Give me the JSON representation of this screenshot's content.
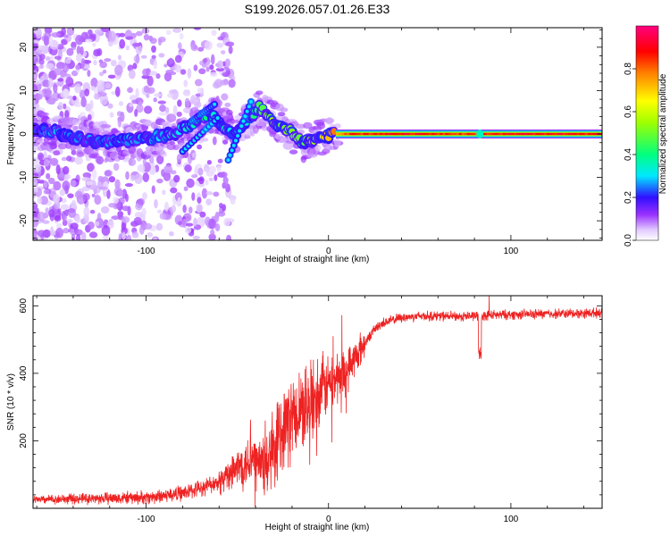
{
  "title": "S199.2026.057.01.26.E33",
  "chart_data": [
    {
      "type": "heatmap",
      "title": "S199.2026.057.01.26.E33",
      "xlabel": "Height of straight line (km)",
      "ylabel": "Frequency (Hz)",
      "xlim": [
        -162,
        150
      ],
      "ylim": [
        -24.5,
        24.5
      ],
      "x_ticks": [
        -100,
        0,
        100
      ],
      "x_tick_labels": [
        "-100",
        "0",
        "100"
      ],
      "y_ticks": [
        -20,
        -10,
        0,
        10,
        20
      ],
      "y_tick_labels": [
        "-20",
        "-10",
        "0",
        "10",
        "20"
      ],
      "colorbar": {
        "label": "Normalized spectral amplitude",
        "range": [
          0,
          1
        ],
        "ticks": [
          0.0,
          0.2,
          0.4,
          0.6,
          0.8
        ],
        "tick_labels": [
          "0.0",
          "0.2",
          "0.4",
          "0.6",
          "0.8"
        ],
        "stops": [
          {
            "v": 0.0,
            "color": "#ffffff"
          },
          {
            "v": 0.05,
            "color": "#e0c8ff"
          },
          {
            "v": 0.12,
            "color": "#9a30ff"
          },
          {
            "v": 0.2,
            "color": "#3010ff"
          },
          {
            "v": 0.3,
            "color": "#00e8ff"
          },
          {
            "v": 0.4,
            "color": "#00ff80"
          },
          {
            "v": 0.55,
            "color": "#a0ff00"
          },
          {
            "v": 0.65,
            "color": "#ffff00"
          },
          {
            "v": 0.78,
            "color": "#ff8000"
          },
          {
            "v": 0.88,
            "color": "#ff0000"
          },
          {
            "v": 1.0,
            "color": "#ff0080"
          }
        ]
      },
      "ridge": [
        {
          "h": -162,
          "f": 0.8,
          "a": 0.22
        },
        {
          "h": -150,
          "f": 0.5,
          "a": 0.24
        },
        {
          "h": -140,
          "f": -0.8,
          "a": 0.22
        },
        {
          "h": -130,
          "f": -1.5,
          "a": 0.24
        },
        {
          "h": -120,
          "f": -1.8,
          "a": 0.25
        },
        {
          "h": -110,
          "f": -1.5,
          "a": 0.26
        },
        {
          "h": -100,
          "f": -1.0,
          "a": 0.27
        },
        {
          "h": -90,
          "f": -0.5,
          "a": 0.28
        },
        {
          "h": -80,
          "f": 1.0,
          "a": 0.32
        },
        {
          "h": -72,
          "f": 3.5,
          "a": 0.34
        },
        {
          "h": -65,
          "f": 4.5,
          "a": 0.36
        },
        {
          "h": -60,
          "f": 3.0,
          "a": 0.33
        },
        {
          "h": -52,
          "f": 0.0,
          "a": 0.3
        },
        {
          "h": -45,
          "f": 3.0,
          "a": 0.34
        },
        {
          "h": -38,
          "f": 6.0,
          "a": 0.4
        },
        {
          "h": -30,
          "f": 3.0,
          "a": 0.55
        },
        {
          "h": -22,
          "f": 1.0,
          "a": 0.5
        },
        {
          "h": -15,
          "f": -2.0,
          "a": 0.45
        },
        {
          "h": -8,
          "f": -1.5,
          "a": 0.55
        },
        {
          "h": -2,
          "f": -0.5,
          "a": 0.65
        },
        {
          "h": 2,
          "f": 0.0,
          "a": 0.75
        },
        {
          "h": 10,
          "f": 0.0,
          "a": 0.85
        },
        {
          "h": 40,
          "f": 0.0,
          "a": 0.9
        },
        {
          "h": 80,
          "f": 0.0,
          "a": 0.85
        },
        {
          "h": 100,
          "f": 0.0,
          "a": 0.9
        },
        {
          "h": 150,
          "f": 0.0,
          "a": 0.88
        }
      ]
    },
    {
      "type": "line",
      "xlabel": "Height of straight line (km)",
      "ylabel": "SNR (10 * v/v)",
      "xlim": [
        -162,
        150
      ],
      "ylim": [
        0,
        630
      ],
      "x_ticks": [
        -100,
        0,
        100
      ],
      "x_tick_labels": [
        "-100",
        "0",
        "100"
      ],
      "y_ticks": [
        200,
        400,
        600
      ],
      "y_tick_labels": [
        "200",
        "400",
        "600"
      ],
      "series": [
        {
          "name": "SNR",
          "color": "#ee2222",
          "x": [
            -162,
            -140,
            -120,
            -100,
            -90,
            -80,
            -70,
            -60,
            -55,
            -50,
            -45,
            -40,
            -35,
            -30,
            -25,
            -20,
            -15,
            -10,
            -5,
            0,
            5,
            10,
            15,
            20,
            25,
            30,
            40,
            50,
            60,
            70,
            80,
            90,
            100,
            110,
            120,
            130,
            140,
            150
          ],
          "y": [
            25,
            28,
            30,
            32,
            38,
            45,
            60,
            80,
            95,
            120,
            140,
            140,
            120,
            170,
            240,
            270,
            300,
            310,
            345,
            370,
            390,
            410,
            450,
            490,
            530,
            550,
            565,
            570,
            570,
            568,
            570,
            572,
            574,
            575,
            576,
            577,
            578,
            580
          ]
        }
      ]
    }
  ]
}
